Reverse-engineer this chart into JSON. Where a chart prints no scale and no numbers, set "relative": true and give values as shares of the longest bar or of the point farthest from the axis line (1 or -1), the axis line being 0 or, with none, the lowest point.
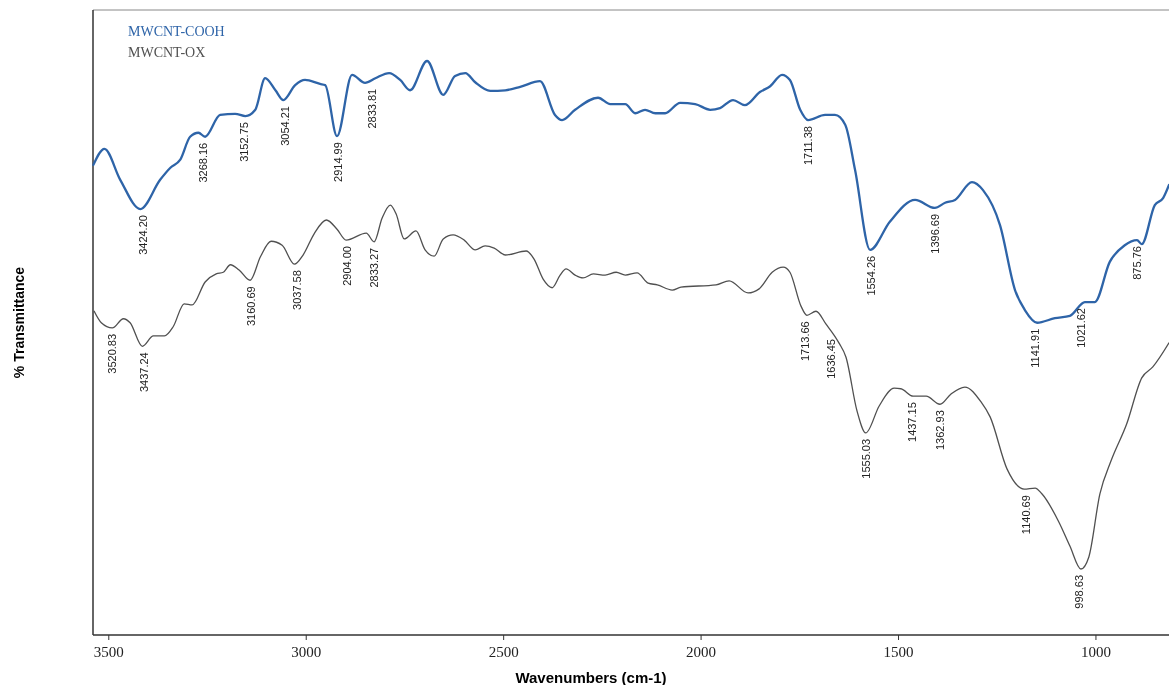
{
  "chart_data": {
    "type": "line",
    "relative": true,
    "xlabel": "Wavenumbers (cm-1)",
    "ylabel": "% Transmittance",
    "xlim": [
      3540,
      815
    ],
    "xticks": [
      3500,
      3000,
      2500,
      2000,
      1500,
      1000
    ],
    "legend": "top left",
    "grid": false,
    "marker": "none",
    "line_style": "solid",
    "series": [
      {
        "name": "MWCNT-COOH",
        "color": "#2e64a8",
        "x": [
          3539,
          3511,
          3471,
          3420,
          3370,
          3344,
          3319,
          3294,
          3273,
          3256,
          3218,
          3180,
          3154,
          3129,
          3104,
          3078,
          3058,
          3028,
          3003,
          2965,
          2952,
          2922,
          2884,
          2851,
          2825,
          2790,
          2762,
          2737,
          2694,
          2653,
          2623,
          2597,
          2572,
          2534,
          2496,
          2458,
          2408,
          2370,
          2352,
          2319,
          2261,
          2230,
          2192,
          2167,
          2142,
          2116,
          2091,
          2053,
          2015,
          1977,
          1952,
          1919,
          1889,
          1851,
          1825,
          1795,
          1775,
          1749,
          1729,
          1686,
          1661,
          1635,
          1610,
          1572,
          1522,
          1458,
          1408,
          1382,
          1357,
          1314,
          1286,
          1243,
          1205,
          1180,
          1149,
          1104,
          1066,
          1028,
          1003,
          965,
          927,
          896,
          884,
          851,
          830,
          815
        ],
        "values": [
          0.819,
          0.847,
          0.793,
          0.742,
          0.793,
          0.814,
          0.828,
          0.868,
          0.875,
          0.868,
          0.906,
          0.908,
          0.904,
          0.915,
          0.97,
          0.949,
          0.932,
          0.958,
          0.967,
          0.96,
          0.958,
          0.869,
          0.976,
          0.962,
          0.97,
          0.979,
          0.967,
          0.949,
          1,
          0.941,
          0.974,
          0.979,
          0.963,
          0.948,
          0.949,
          0.955,
          0.965,
          0.906,
          0.897,
          0.915,
          0.936,
          0.925,
          0.925,
          0.909,
          0.915,
          0.909,
          0.909,
          0.927,
          0.925,
          0.915,
          0.918,
          0.932,
          0.923,
          0.946,
          0.956,
          0.976,
          0.967,
          0.915,
          0.897,
          0.906,
          0.906,
          0.889,
          0.81,
          0.671,
          0.72,
          0.758,
          0.744,
          0.753,
          0.758,
          0.789,
          0.775,
          0.714,
          0.601,
          0.566,
          0.544,
          0.552,
          0.556,
          0.58,
          0.58,
          0.65,
          0.679,
          0.688,
          0.681,
          0.749,
          0.761,
          0.784
        ]
      },
      {
        "name": "MWCNT-OX",
        "color": "#505050",
        "x": [
          3537,
          3519,
          3491,
          3463,
          3446,
          3415,
          3387,
          3359,
          3337,
          3309,
          3289,
          3256,
          3228,
          3210,
          3192,
          3170,
          3142,
          3116,
          3089,
          3061,
          3030,
          3008,
          2980,
          2949,
          2922,
          2899,
          2848,
          2828,
          2808,
          2787,
          2772,
          2752,
          2722,
          2699,
          2676,
          2653,
          2628,
          2600,
          2572,
          2547,
          2524,
          2496,
          2443,
          2423,
          2400,
          2377,
          2357,
          2342,
          2319,
          2299,
          2273,
          2243,
          2215,
          2192,
          2162,
          2134,
          2111,
          2073,
          2051,
          1962,
          1929,
          1881,
          1853,
          1820,
          1792,
          1775,
          1747,
          1732,
          1709,
          1684,
          1651,
          1633,
          1605,
          1583,
          1549,
          1511,
          1494,
          1463,
          1430,
          1395,
          1367,
          1332,
          1291,
          1268,
          1225,
          1182,
          1154,
          1137,
          1094,
          1066,
          1038,
          1018,
          990,
          962,
          922,
          884,
          856,
          815
        ],
        "values": [
          0.564,
          0.544,
          0.535,
          0.551,
          0.544,
          0.503,
          0.521,
          0.521,
          0.537,
          0.577,
          0.575,
          0.615,
          0.629,
          0.632,
          0.645,
          0.636,
          0.618,
          0.659,
          0.686,
          0.679,
          0.646,
          0.662,
          0.699,
          0.723,
          0.707,
          0.688,
          0.7,
          0.685,
          0.726,
          0.749,
          0.733,
          0.69,
          0.704,
          0.671,
          0.66,
          0.69,
          0.697,
          0.688,
          0.671,
          0.678,
          0.674,
          0.662,
          0.669,
          0.655,
          0.62,
          0.605,
          0.627,
          0.638,
          0.627,
          0.622,
          0.629,
          0.627,
          0.632,
          0.627,
          0.631,
          0.613,
          0.61,
          0.601,
          0.606,
          0.61,
          0.617,
          0.596,
          0.603,
          0.632,
          0.641,
          0.632,
          0.573,
          0.557,
          0.564,
          0.542,
          0.509,
          0.484,
          0.39,
          0.352,
          0.399,
          0.43,
          0.429,
          0.416,
          0.416,
          0.402,
          0.42,
          0.432,
          0.406,
          0.38,
          0.289,
          0.254,
          0.256,
          0.246,
          0.197,
          0.155,
          0.115,
          0.136,
          0.246,
          0.303,
          0.368,
          0.448,
          0.467,
          0.509
        ]
      }
    ],
    "annotations": [
      {
        "text": "3424.20",
        "x": 3413,
        "y": 0.742
      },
      {
        "text": "3268.16",
        "x": 3261,
        "y": 0.868
      },
      {
        "text": "3152.75",
        "x": 3157,
        "y": 0.904
      },
      {
        "text": "3054.21",
        "x": 3053,
        "y": 0.932
      },
      {
        "text": "2914.99",
        "x": 2919,
        "y": 0.869
      },
      {
        "text": "2833.81",
        "x": 2833,
        "y": 0.962
      },
      {
        "text": "1711.38",
        "x": 1729,
        "y": 0.897
      },
      {
        "text": "1554.26",
        "x": 1570,
        "y": 0.671
      },
      {
        "text": "1396.69",
        "x": 1408,
        "y": 0.744
      },
      {
        "text": "1141.91",
        "x": 1154,
        "y": 0.544
      },
      {
        "text": "1021.62",
        "x": 1038,
        "y": 0.58
      },
      {
        "text": "875.76",
        "x": 896,
        "y": 0.688
      },
      {
        "text": "3520.83",
        "x": 3491,
        "y": 0.535
      },
      {
        "text": "3437.24",
        "x": 3410,
        "y": 0.503
      },
      {
        "text": "3160.69",
        "x": 3139,
        "y": 0.618
      },
      {
        "text": "3037.58",
        "x": 3023,
        "y": 0.646
      },
      {
        "text": "2904.00",
        "x": 2896,
        "y": 0.688
      },
      {
        "text": "2833.27",
        "x": 2828,
        "y": 0.685
      },
      {
        "text": "1713.66",
        "x": 1737,
        "y": 0.557
      },
      {
        "text": "1636.45",
        "x": 1671,
        "y": 0.526
      },
      {
        "text": "1555.03",
        "x": 1583,
        "y": 0.352
      },
      {
        "text": "1437.15",
        "x": 1466,
        "y": 0.416
      },
      {
        "text": "1362.93",
        "x": 1395,
        "y": 0.402
      },
      {
        "text": "1140.69",
        "x": 1177,
        "y": 0.254
      },
      {
        "text": "998.63",
        "x": 1043,
        "y": 0.115
      }
    ]
  }
}
